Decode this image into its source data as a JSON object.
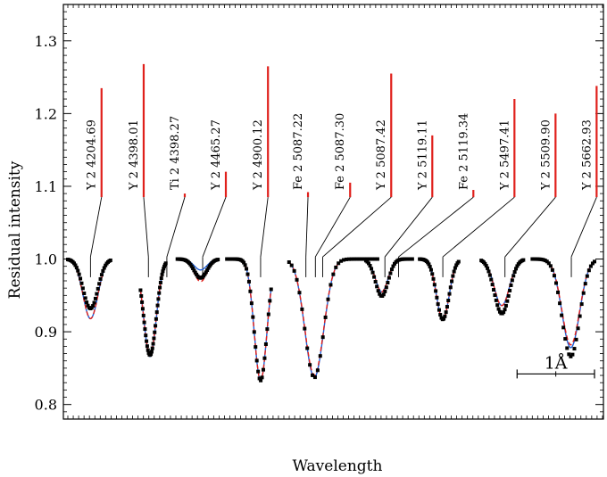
{
  "chart_data": {
    "type": "line",
    "title": "",
    "xlabel": "Wavelength",
    "ylabel": "Residual intensity",
    "ylim": [
      0.78,
      1.35
    ],
    "yticks": [
      0.8,
      0.9,
      1.0,
      1.1,
      1.2,
      1.3
    ],
    "ytick_labels": [
      "0.8",
      "0.9",
      "1.0",
      "1.1",
      "1.2",
      "1.3"
    ],
    "xlim": [
      0,
      100
    ],
    "grid": false,
    "scale_bar": {
      "label": "1Å",
      "x_start": 85.3,
      "x_end": 100,
      "y": 0.842
    },
    "colors": {
      "observed": "#000000",
      "model_blue": "#1f5fd6",
      "model_red": "#e0201b",
      "line_marker": "#e0201b",
      "axes": "#000000"
    },
    "segments": [
      {
        "x_start": 0,
        "x_end": 8.1,
        "min": 0.932,
        "blue_min": 0.918,
        "red_min": 0.918,
        "center": 4.3
      },
      {
        "x_start": 13.8,
        "x_end": 18.6,
        "min": 0.868,
        "blue_min": 0.866,
        "red_min": 0.868,
        "center": 15.6
      },
      {
        "x_start": 20.8,
        "x_end": 28.5,
        "min": 0.974,
        "blue_min": 0.985,
        "red_min": 0.969,
        "center": 25.2
      },
      {
        "x_start": 30.2,
        "x_end": 38.6,
        "min": 0.833,
        "blue_min": 0.833,
        "red_min": 0.833,
        "center": 36.6
      },
      {
        "x_start": 42.0,
        "x_end": 58.8,
        "min": 0.837,
        "blue_min": 0.837,
        "red_min": 0.84,
        "center": 46.8
      },
      {
        "x_start": 56.6,
        "x_end": 65.4,
        "min": 0.949,
        "blue_min": 0.955,
        "red_min": 0.955,
        "center": 59.6
      },
      {
        "x_start": 66.8,
        "x_end": 74.2,
        "min": 0.917,
        "blue_min": 0.917,
        "red_min": 0.917,
        "center": 71.2
      },
      {
        "x_start": 78.5,
        "x_end": 86.5,
        "min": 0.925,
        "blue_min": 0.936,
        "red_min": 0.936,
        "center": 82.4
      },
      {
        "x_start": 88.2,
        "x_end": 100,
        "min": 0.866,
        "blue_min": 0.878,
        "red_min": 0.882,
        "center": 95.5
      }
    ],
    "lines": [
      {
        "label": "Y 2 4204.69",
        "x": 6.4,
        "strength": 1.235,
        "dip_x": 4.3
      },
      {
        "label": "Y 2 4398.01",
        "x": 14.4,
        "strength": 1.268,
        "dip_x": 15.3
      },
      {
        "label": "Ti 2 4398.27",
        "x": 22.2,
        "strength": 1.09,
        "dip_x": 18.8
      },
      {
        "label": "Y 2 4465.27",
        "x": 30.0,
        "strength": 1.12,
        "dip_x": 25.6
      },
      {
        "label": "Y 2 4900.12",
        "x": 38.0,
        "strength": 1.265,
        "dip_x": 36.6
      },
      {
        "label": "Fe 2 5087.22",
        "x": 45.6,
        "strength": 1.092,
        "dip_x": 45.2
      },
      {
        "label": "Fe 2 5087.30",
        "x": 53.6,
        "strength": 1.105,
        "dip_x": 47.0
      },
      {
        "label": "Y 2 5087.42",
        "x": 61.4,
        "strength": 1.255,
        "dip_x": 48.4
      },
      {
        "label": "Y 2 5119.11",
        "x": 69.2,
        "strength": 1.17,
        "dip_x": 60.2
      },
      {
        "label": "Fe 2 5119.34",
        "x": 77.0,
        "strength": 1.095,
        "dip_x": 62.8
      },
      {
        "label": "Y 2 5497.41",
        "x": 84.8,
        "strength": 1.22,
        "dip_x": 71.2
      },
      {
        "label": "Y 2 5509.90",
        "x": 92.6,
        "strength": 1.2,
        "dip_x": 83.0
      },
      {
        "label": "Y 2 5662.93",
        "x": 100.4,
        "strength": 1.238,
        "dip_x": 95.6
      }
    ]
  }
}
